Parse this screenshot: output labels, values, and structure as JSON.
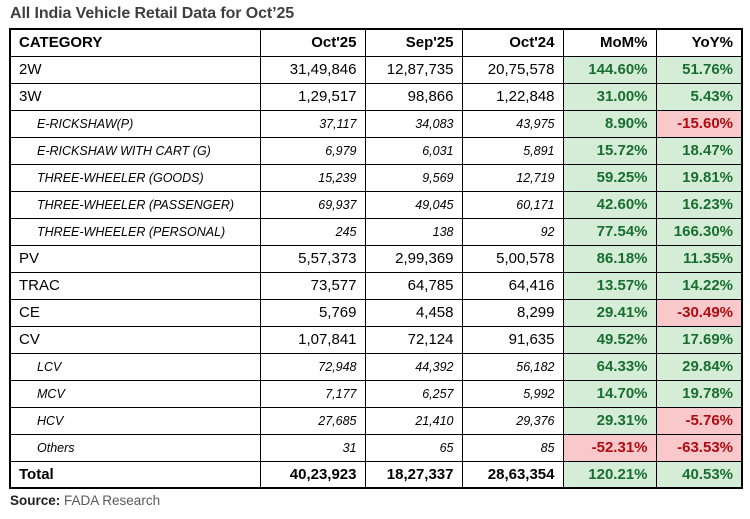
{
  "title": "All India Vehicle Retail Data for Oct’25",
  "source": {
    "label": "Source:",
    "value": "FADA Research"
  },
  "colors": {
    "positive_bg": "#d5edd7",
    "positive_text": "#186e2f",
    "negative_bg": "#f8c8cb",
    "negative_text": "#b00b10",
    "title_text": "#3f3f3f",
    "border": "#000000"
  },
  "chart_data": {
    "type": "table",
    "title": "All India Vehicle Retail Data for Oct’25",
    "columns": [
      "CATEGORY",
      "Oct'25",
      "Sep'25",
      "Oct'24",
      "MoM%",
      "YoY%"
    ],
    "rows": [
      {
        "category": "2W",
        "style": "main",
        "oct25": "31,49,846",
        "sep25": "12,87,735",
        "oct24": "20,75,578",
        "mom": "144.60%",
        "yoy": "51.76%",
        "mom_color": "green",
        "yoy_color": "green"
      },
      {
        "category": "3W",
        "style": "main",
        "oct25": "1,29,517",
        "sep25": "98,866",
        "oct24": "1,22,848",
        "mom": "31.00%",
        "yoy": "5.43%",
        "mom_color": "green",
        "yoy_color": "green"
      },
      {
        "category": "E-RICKSHAW(P)",
        "style": "sub",
        "oct25": "37,117",
        "sep25": "34,083",
        "oct24": "43,975",
        "mom": "8.90%",
        "yoy": "-15.60%",
        "mom_color": "green",
        "yoy_color": "red"
      },
      {
        "category": "E-RICKSHAW WITH CART (G)",
        "style": "sub",
        "oct25": "6,979",
        "sep25": "6,031",
        "oct24": "5,891",
        "mom": "15.72%",
        "yoy": "18.47%",
        "mom_color": "green",
        "yoy_color": "green"
      },
      {
        "category": "THREE-WHEELER (GOODS)",
        "style": "sub",
        "oct25": "15,239",
        "sep25": "9,569",
        "oct24": "12,719",
        "mom": "59.25%",
        "yoy": "19.81%",
        "mom_color": "green",
        "yoy_color": "green"
      },
      {
        "category": "THREE-WHEELER (PASSENGER)",
        "style": "sub",
        "oct25": "69,937",
        "sep25": "49,045",
        "oct24": "60,171",
        "mom": "42.60%",
        "yoy": "16.23%",
        "mom_color": "green",
        "yoy_color": "green"
      },
      {
        "category": "THREE-WHEELER (PERSONAL)",
        "style": "sub",
        "oct25": "245",
        "sep25": "138",
        "oct24": "92",
        "mom": "77.54%",
        "yoy": "166.30%",
        "mom_color": "green",
        "yoy_color": "green"
      },
      {
        "category": "PV",
        "style": "main",
        "oct25": "5,57,373",
        "sep25": "2,99,369",
        "oct24": "5,00,578",
        "mom": "86.18%",
        "yoy": "11.35%",
        "mom_color": "green",
        "yoy_color": "green"
      },
      {
        "category": "TRAC",
        "style": "main",
        "oct25": "73,577",
        "sep25": "64,785",
        "oct24": "64,416",
        "mom": "13.57%",
        "yoy": "14.22%",
        "mom_color": "green",
        "yoy_color": "green"
      },
      {
        "category": "CE",
        "style": "main",
        "oct25": "5,769",
        "sep25": "4,458",
        "oct24": "8,299",
        "mom": "29.41%",
        "yoy": "-30.49%",
        "mom_color": "green",
        "yoy_color": "red"
      },
      {
        "category": "CV",
        "style": "main",
        "oct25": "1,07,841",
        "sep25": "72,124",
        "oct24": "91,635",
        "mom": "49.52%",
        "yoy": "17.69%",
        "mom_color": "green",
        "yoy_color": "green"
      },
      {
        "category": "LCV",
        "style": "sub",
        "oct25": "72,948",
        "sep25": "44,392",
        "oct24": "56,182",
        "mom": "64.33%",
        "yoy": "29.84%",
        "mom_color": "green",
        "yoy_color": "green"
      },
      {
        "category": "MCV",
        "style": "sub",
        "oct25": "7,177",
        "sep25": "6,257",
        "oct24": "5,992",
        "mom": "14.70%",
        "yoy": "19.78%",
        "mom_color": "green",
        "yoy_color": "green"
      },
      {
        "category": "HCV",
        "style": "sub",
        "oct25": "27,685",
        "sep25": "21,410",
        "oct24": "29,376",
        "mom": "29.31%",
        "yoy": "-5.76%",
        "mom_color": "green",
        "yoy_color": "red"
      },
      {
        "category": "Others",
        "style": "sub",
        "oct25": "31",
        "sep25": "65",
        "oct24": "85",
        "mom": "-52.31%",
        "yoy": "-63.53%",
        "mom_color": "red",
        "yoy_color": "red"
      },
      {
        "category": "Total",
        "style": "total",
        "oct25": "40,23,923",
        "sep25": "18,27,337",
        "oct24": "28,63,354",
        "mom": "120.21%",
        "yoy": "40.53%",
        "mom_color": "green",
        "yoy_color": "green"
      }
    ]
  }
}
